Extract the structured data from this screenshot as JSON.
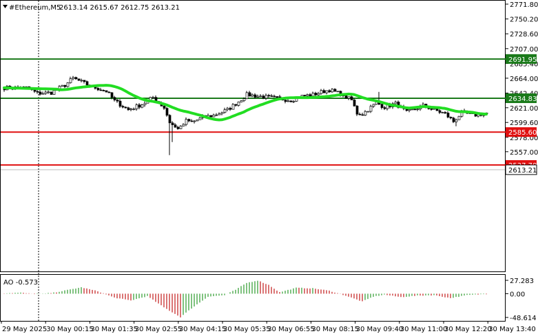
{
  "header": {
    "symbol_label": "#Ethereum,M5",
    "ohlc_label": "2613.14 2615.67 2612.75 2613.21"
  },
  "price_axis": {
    "ticks": [
      "2771.80",
      "2750.20",
      "2728.60",
      "2707.00",
      "2685.40",
      "2664.00",
      "2642.40",
      "2621.00",
      "2599.60",
      "2578.00",
      "2557.00"
    ]
  },
  "level_lines": [
    {
      "id": "level-2691",
      "price": 2691.95,
      "label": "2691.95",
      "color": "#1a7a1a"
    },
    {
      "id": "level-2634",
      "price": 2634.83,
      "label": "2634.83",
      "color": "#1a7a1a"
    },
    {
      "id": "level-2585",
      "price": 2585.6,
      "label": "2585.60",
      "color": "#e01010"
    },
    {
      "id": "level-2537",
      "price": 2537.7,
      "label": "2537.70",
      "color": "#e01010"
    }
  ],
  "current_price": {
    "value": 2613.21,
    "label": "2613.21"
  },
  "indicator": {
    "label": "AO -0.573",
    "ticks": [
      "27.283",
      "0.00",
      "-48.614"
    ]
  },
  "time_axis": {
    "labels": [
      "29 May 2025",
      "30 May 00:15",
      "30 May 01:35",
      "30 May 02:55",
      "30 May 04:15",
      "30 May 05:35",
      "30 May 06:55",
      "30 May 08:15",
      "30 May 09:40",
      "30 May 11:00",
      "30 May 12:20",
      "30 May 13:40"
    ]
  },
  "colors": {
    "bull_bar": "#2a9a2a",
    "bear_bar": "#c01818",
    "moving_average": "#22dd22",
    "candle": "#000000",
    "grid": "#e0e0e0"
  }
}
